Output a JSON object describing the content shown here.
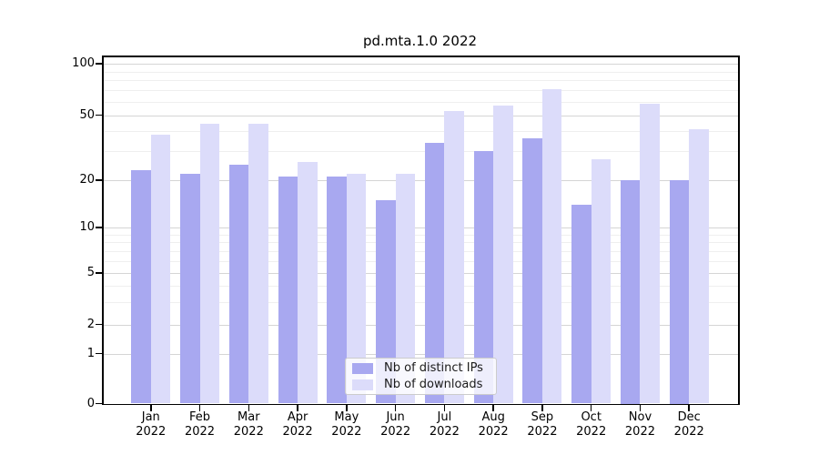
{
  "figure": {
    "title": "pd.mta.1.0 2022"
  },
  "chart_data": {
    "type": "bar",
    "title": "pd.mta.1.0 2022",
    "categories": [
      "Jan 2022",
      "Feb 2022",
      "Mar 2022",
      "Apr 2022",
      "May 2022",
      "Jun 2022",
      "Jul 2022",
      "Aug 2022",
      "Sep 2022",
      "Oct 2022",
      "Nov 2022",
      "Dec 2022"
    ],
    "x_months": [
      "Jan",
      "Feb",
      "Mar",
      "Apr",
      "May",
      "Jun",
      "Jul",
      "Aug",
      "Sep",
      "Oct",
      "Nov",
      "Dec"
    ],
    "x_year": "2022",
    "series": [
      {
        "name": "Nb of distinct IPs",
        "color": "#a8a8f0",
        "values": [
          23,
          22,
          25,
          21,
          21,
          15,
          34,
          30,
          36,
          14,
          20,
          20
        ]
      },
      {
        "name": "Nb of downloads",
        "color": "#dcdcfa",
        "values": [
          38,
          44,
          44,
          26,
          22,
          22,
          53,
          57,
          71,
          27,
          58,
          41
        ]
      }
    ],
    "yscale": "symlog",
    "yticks": [
      0,
      1,
      2,
      5,
      10,
      20,
      50,
      100
    ],
    "minor_gridlines": [
      3,
      4,
      6,
      7,
      8,
      9,
      30,
      40,
      60,
      70,
      80,
      90
    ],
    "ylim": [
      0,
      110
    ],
    "grid": true,
    "legend_position": "lower center",
    "xlabel": "",
    "ylabel": ""
  },
  "colors": {
    "major_grid": "#d5d5d5",
    "minor_grid": "#efefef",
    "axis": "#000000",
    "legend_border": "#cccccc"
  }
}
